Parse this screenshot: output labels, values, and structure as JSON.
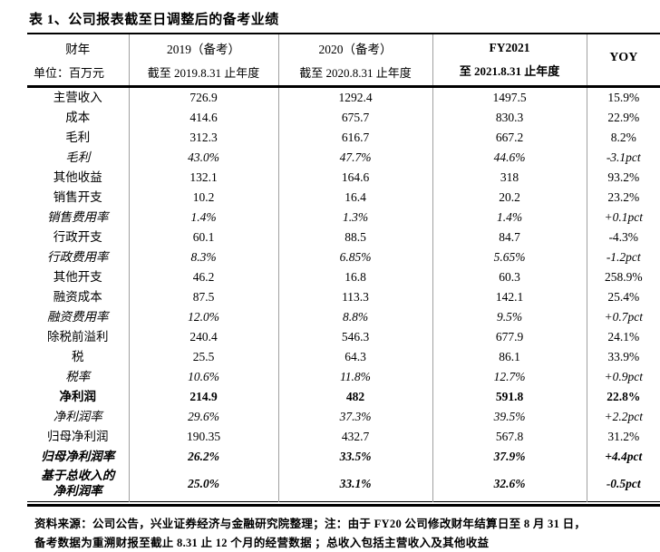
{
  "title": "表 1、公司报表截至日调整后的备考业绩",
  "header": {
    "columns": [
      {
        "line1": "财年",
        "line2": "单位：百万元"
      },
      {
        "line1": "2019（备考）",
        "line2": "截至 2019.8.31 止年度"
      },
      {
        "line1": "2020（备考）",
        "line2": "截至 2020.8.31 止年度"
      },
      {
        "line1": "FY2021",
        "line2": "至 2021.8.31 止年度"
      },
      {
        "line1": "YOY",
        "line2": ""
      }
    ]
  },
  "table": {
    "rows": [
      {
        "label": "主营收入",
        "fy2019": "726.9",
        "fy2020": "1292.4",
        "fy2021": "1497.5",
        "yoy": "15.9%",
        "style": "normal"
      },
      {
        "label": "成本",
        "fy2019": "414.6",
        "fy2020": "675.7",
        "fy2021": "830.3",
        "yoy": "22.9%",
        "style": "normal"
      },
      {
        "label": "毛利",
        "fy2019": "312.3",
        "fy2020": "616.7",
        "fy2021": "667.2",
        "yoy": "8.2%",
        "style": "normal"
      },
      {
        "label": "毛利",
        "fy2019": "43.0%",
        "fy2020": "47.7%",
        "fy2021": "44.6%",
        "yoy": "-3.1pct",
        "style": "italic"
      },
      {
        "label": "其他收益",
        "fy2019": "132.1",
        "fy2020": "164.6",
        "fy2021": "318",
        "yoy": "93.2%",
        "style": "normal"
      },
      {
        "label": "销售开支",
        "fy2019": "10.2",
        "fy2020": "16.4",
        "fy2021": "20.2",
        "yoy": "23.2%",
        "style": "normal"
      },
      {
        "label": "销售费用率",
        "fy2019": "1.4%",
        "fy2020": "1.3%",
        "fy2021": "1.4%",
        "yoy": "+0.1pct",
        "style": "italic"
      },
      {
        "label": "行政开支",
        "fy2019": "60.1",
        "fy2020": "88.5",
        "fy2021": "84.7",
        "yoy": "-4.3%",
        "style": "normal"
      },
      {
        "label": "行政费用率",
        "fy2019": "8.3%",
        "fy2020": "6.85%",
        "fy2021": "5.65%",
        "yoy": "-1.2pct",
        "style": "italic"
      },
      {
        "label": "其他开支",
        "fy2019": "46.2",
        "fy2020": "16.8",
        "fy2021": "60.3",
        "yoy": "258.9%",
        "style": "normal"
      },
      {
        "label": "融资成本",
        "fy2019": "87.5",
        "fy2020": "113.3",
        "fy2021": "142.1",
        "yoy": "25.4%",
        "style": "normal"
      },
      {
        "label": "融资费用率",
        "fy2019": "12.0%",
        "fy2020": "8.8%",
        "fy2021": "9.5%",
        "yoy": "+0.7pct",
        "style": "italic"
      },
      {
        "label": "除税前溢利",
        "fy2019": "240.4",
        "fy2020": "546.3",
        "fy2021": "677.9",
        "yoy": "24.1%",
        "style": "normal"
      },
      {
        "label": "税",
        "fy2019": "25.5",
        "fy2020": "64.3",
        "fy2021": "86.1",
        "yoy": "33.9%",
        "style": "normal"
      },
      {
        "label": "税率",
        "fy2019": "10.6%",
        "fy2020": "11.8%",
        "fy2021": "12.7%",
        "yoy": "+0.9pct",
        "style": "italic"
      },
      {
        "label": "净利润",
        "fy2019": "214.9",
        "fy2020": "482",
        "fy2021": "591.8",
        "yoy": "22.8%",
        "style": "bold"
      },
      {
        "label": "净利润率",
        "fy2019": "29.6%",
        "fy2020": "37.3%",
        "fy2021": "39.5%",
        "yoy": "+2.2pct",
        "style": "italic"
      },
      {
        "label": "归母净利润",
        "fy2019": "190.35",
        "fy2020": "432.7",
        "fy2021": "567.8",
        "yoy": "31.2%",
        "style": "normal"
      },
      {
        "label": "归母净利润率",
        "fy2019": "26.2%",
        "fy2020": "33.5%",
        "fy2021": "37.9%",
        "yoy": "+4.4pct",
        "style": "bold-italic"
      },
      {
        "label": "基于总收入的\n净利润率",
        "fy2019": "25.0%",
        "fy2020": "33.1%",
        "fy2021": "32.6%",
        "yoy": "-0.5pct",
        "style": "bold-italic"
      }
    ]
  },
  "footer": {
    "line1": "资料来源：公司公告，兴业证券经济与金融研究院整理；注：由于 FY20 公司修改财年结算日至 8 月 31 日，",
    "line2": "备考数据为重溯财报至截止 8.31 止 12 个月的经营数据 ；总收入包括主营收入及其他收益"
  },
  "colors": {
    "text": "#000000",
    "rule": "#000000",
    "column_divider": "#a0a0a0",
    "background": "#ffffff"
  }
}
